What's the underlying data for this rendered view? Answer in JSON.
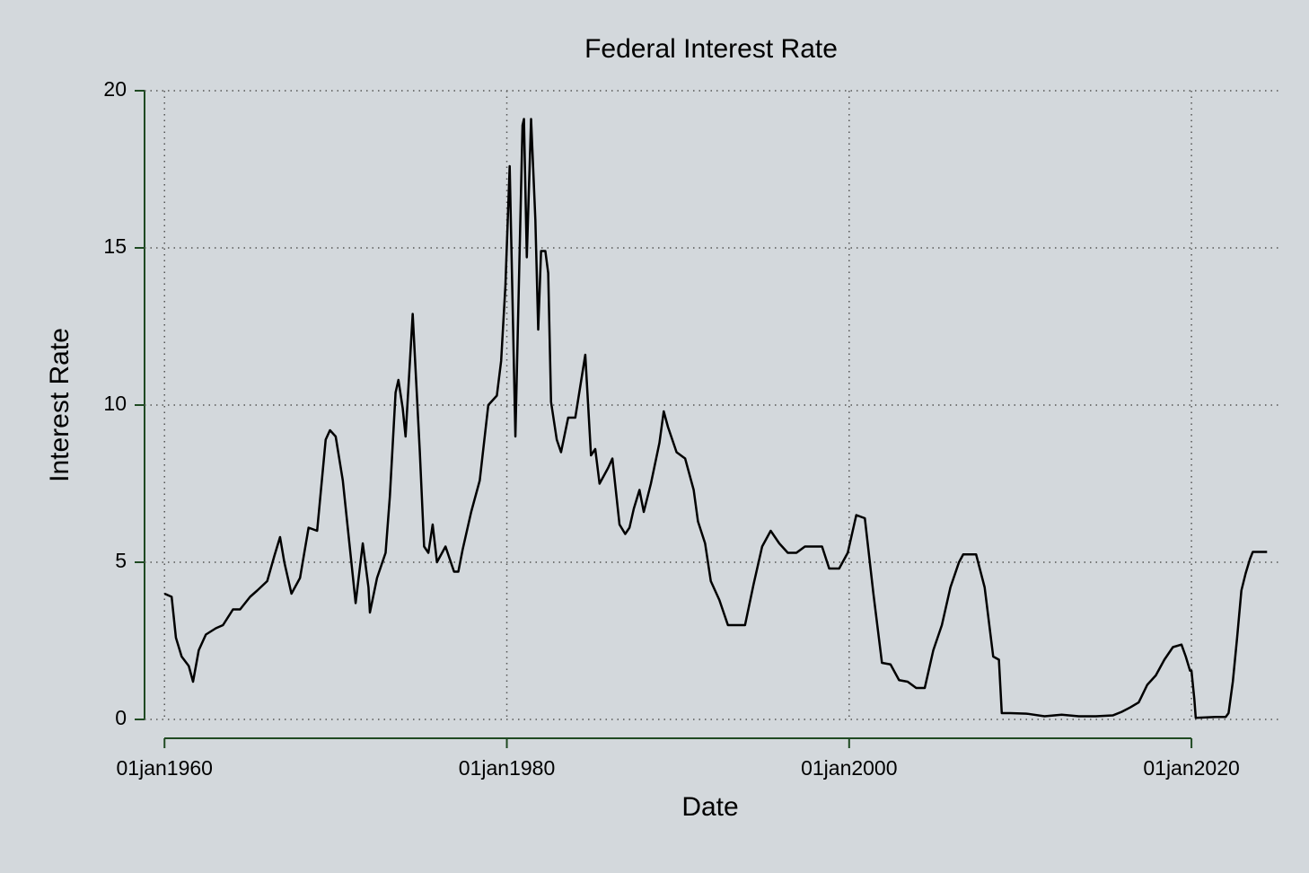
{
  "chart_data": {
    "type": "line",
    "title": "Federal Interest Rate",
    "x_label": "Date",
    "y_label": "Interest Rate",
    "x": [
      "1960-01",
      "1960-06",
      "1960-09",
      "1961-01",
      "1961-06",
      "1961-09",
      "1962-01",
      "1962-06",
      "1963-01",
      "1963-06",
      "1964-01",
      "1964-06",
      "1965-01",
      "1965-06",
      "1966-01",
      "1966-06",
      "1966-10",
      "1967-01",
      "1967-06",
      "1967-12",
      "1968-06",
      "1968-12",
      "1969-06",
      "1969-09",
      "1970-01",
      "1970-06",
      "1970-12",
      "1971-03",
      "1971-08",
      "1971-12",
      "1972-01",
      "1972-06",
      "1972-12",
      "1973-03",
      "1973-07",
      "1973-09",
      "1973-12",
      "1974-02",
      "1974-07",
      "1974-12",
      "1975-03",
      "1975-06",
      "1975-09",
      "1975-12",
      "1976-06",
      "1976-12",
      "1977-03",
      "1977-06",
      "1977-12",
      "1978-06",
      "1978-12",
      "1979-06",
      "1979-09",
      "1979-12",
      "1980-03",
      "1980-07",
      "1980-12",
      "1981-01",
      "1981-03",
      "1981-06",
      "1981-09",
      "1981-11",
      "1982-01",
      "1982-04",
      "1982-06",
      "1982-08",
      "1982-12",
      "1983-03",
      "1983-08",
      "1984-01",
      "1984-08",
      "1984-12",
      "1985-03",
      "1985-06",
      "1985-12",
      "1986-03",
      "1986-08",
      "1986-12",
      "1987-03",
      "1987-06",
      "1987-10",
      "1988-01",
      "1988-06",
      "1988-12",
      "1989-03",
      "1989-06",
      "1989-12",
      "1990-06",
      "1990-12",
      "1991-03",
      "1991-08",
      "1991-12",
      "1992-06",
      "1992-12",
      "1993-06",
      "1993-12",
      "1994-06",
      "1994-12",
      "1995-06",
      "1995-12",
      "1996-06",
      "1996-12",
      "1997-06",
      "1998-06",
      "1998-11",
      "1999-06",
      "1999-12",
      "2000-06",
      "2000-12",
      "2001-06",
      "2001-12",
      "2002-06",
      "2002-12",
      "2003-06",
      "2003-12",
      "2004-06",
      "2004-12",
      "2005-06",
      "2005-12",
      "2006-06",
      "2006-09",
      "2007-06",
      "2007-12",
      "2008-06",
      "2008-10",
      "2008-12",
      "2009-06",
      "2010-06",
      "2011-06",
      "2012-06",
      "2013-06",
      "2014-06",
      "2015-06",
      "2015-12",
      "2016-06",
      "2016-12",
      "2017-06",
      "2017-12",
      "2018-06",
      "2018-12",
      "2019-06",
      "2019-09",
      "2019-12",
      "2020-01",
      "2020-03",
      "2020-04",
      "2021-06",
      "2022-01",
      "2022-03",
      "2022-06",
      "2022-09",
      "2022-12",
      "2023-03",
      "2023-06",
      "2023-08",
      "2024-06"
    ],
    "series": [
      {
        "name": "Interest Rate",
        "color": "#000000",
        "values": [
          4.0,
          3.9,
          2.6,
          2.0,
          1.7,
          1.2,
          2.2,
          2.7,
          2.9,
          3.0,
          3.5,
          3.5,
          3.9,
          4.1,
          4.4,
          5.2,
          5.8,
          5.0,
          4.0,
          4.5,
          6.1,
          6.0,
          8.9,
          9.2,
          9.0,
          7.6,
          5.0,
          3.7,
          5.6,
          4.2,
          3.4,
          4.5,
          5.3,
          7.1,
          10.4,
          10.8,
          9.9,
          9.0,
          12.9,
          8.5,
          5.5,
          5.3,
          6.2,
          5.0,
          5.5,
          4.7,
          4.7,
          5.4,
          6.6,
          7.6,
          10.0,
          10.3,
          11.4,
          13.8,
          17.6,
          9.0,
          18.9,
          19.1,
          14.7,
          19.1,
          15.9,
          12.4,
          14.9,
          14.9,
          14.2,
          10.1,
          8.9,
          8.5,
          9.6,
          9.6,
          11.6,
          8.4,
          8.6,
          7.5,
          8.0,
          8.3,
          6.2,
          5.9,
          6.1,
          6.7,
          7.3,
          6.6,
          7.5,
          8.8,
          9.8,
          9.3,
          8.5,
          8.3,
          7.3,
          6.3,
          5.6,
          4.4,
          3.8,
          3.0,
          3.0,
          3.0,
          4.3,
          5.5,
          6.0,
          5.6,
          5.3,
          5.3,
          5.5,
          5.5,
          4.8,
          4.8,
          5.3,
          6.5,
          6.4,
          4.0,
          1.8,
          1.75,
          1.25,
          1.2,
          1.0,
          1.0,
          2.2,
          3.0,
          4.2,
          5.0,
          5.25,
          5.25,
          4.2,
          2.0,
          1.9,
          0.2,
          0.2,
          0.18,
          0.1,
          0.15,
          0.1,
          0.1,
          0.13,
          0.24,
          0.38,
          0.54,
          1.1,
          1.4,
          1.9,
          2.3,
          2.38,
          2.0,
          1.55,
          1.55,
          0.65,
          0.05,
          0.08,
          0.08,
          0.2,
          1.2,
          2.6,
          4.1,
          4.65,
          5.1,
          5.33,
          5.33
        ]
      }
    ],
    "xlim": [
      "1958-11",
      "2025-02"
    ],
    "xticks": [
      {
        "value": "1960-01-01",
        "label": "01jan1960"
      },
      {
        "value": "1980-01-01",
        "label": "01jan1980"
      },
      {
        "value": "2000-01-01",
        "label": "01jan2000"
      },
      {
        "value": "2020-01-01",
        "label": "01jan2020"
      }
    ],
    "ylim": [
      -0.6,
      20
    ],
    "yticks": [
      0,
      5,
      10,
      15,
      20
    ],
    "grid": true
  }
}
